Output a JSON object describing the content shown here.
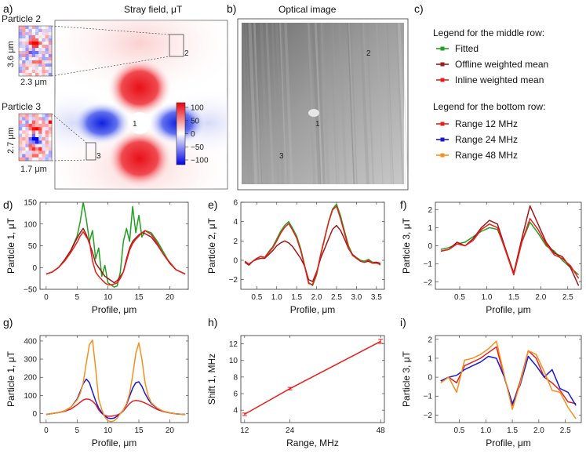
{
  "panel_labels": [
    "a)",
    "b)",
    "c)",
    "d)",
    "e)",
    "f)",
    "g)",
    "h)",
    "i)"
  ],
  "panel_a": {
    "title": "Stray field, μT",
    "colorbar_ticks": [
      "100",
      "50",
      "0",
      "−50",
      "−100"
    ],
    "point_labels": [
      "1",
      "2",
      "3"
    ],
    "inset_particle2": {
      "title": "Particle 2",
      "height": "3.6 μm",
      "width": "2.3 μm"
    },
    "inset_particle3": {
      "title": "Particle 3",
      "height": "2.7 μm",
      "width": "1.7 μm"
    }
  },
  "panel_b": {
    "title": "Optical image",
    "point_labels": [
      "1",
      "2",
      "3"
    ]
  },
  "panel_c": {
    "middle_title": "Legend for the middle row:",
    "middle_items": [
      {
        "label": "Fitted",
        "color": "#22a022"
      },
      {
        "label": "Offline weighted mean",
        "color": "#a01818"
      },
      {
        "label": "Inline weighted mean",
        "color": "#e8201c"
      }
    ],
    "bottom_title": "Legend for the bottom row:",
    "bottom_items": [
      {
        "label": "Range 12 MHz",
        "color": "#e8201c"
      },
      {
        "label": "Range 24 MHz",
        "color": "#1818d8"
      },
      {
        "label": "Range 48 MHz",
        "color": "#f5901e"
      }
    ]
  },
  "chart_data": [
    {
      "id": "d",
      "type": "line",
      "xlabel": "Profile, μm",
      "ylabel": "Particle 1, μT",
      "xlim": [
        -1,
        23
      ],
      "ylim": [
        -50,
        150
      ],
      "xticks": [
        0,
        5,
        10,
        15,
        20
      ],
      "xticklabels": [
        "0",
        "5",
        "10",
        "15",
        "20"
      ],
      "yticks": [
        -50,
        0,
        50,
        100,
        150
      ],
      "yticklabels": [
        "−50",
        "0",
        "50",
        "100",
        "150"
      ],
      "x": [
        0,
        1,
        2,
        3,
        4,
        5,
        5.5,
        6,
        6.5,
        7,
        7.5,
        8,
        8.5,
        9,
        9.5,
        10,
        10.5,
        11,
        11.5,
        12,
        12.5,
        13,
        13.5,
        14,
        14.5,
        15,
        15.5,
        16,
        17,
        18,
        19,
        20,
        21,
        22.5
      ],
      "series": [
        {
          "name": "Fitted",
          "color": "#22a022",
          "values": [
            -15,
            -10,
            0,
            18,
            40,
            72,
            105,
            150,
            110,
            60,
            85,
            20,
            45,
            -20,
            5,
            -35,
            -40,
            -45,
            -42,
            -10,
            60,
            90,
            60,
            140,
            80,
            120,
            70,
            85,
            80,
            60,
            35,
            10,
            -5,
            -15
          ]
        },
        {
          "name": "Offline weighted mean",
          "color": "#a01818",
          "values": [
            -15,
            -10,
            0,
            18,
            40,
            68,
            80,
            90,
            75,
            55,
            35,
            10,
            0,
            -10,
            -20,
            -25,
            -30,
            -35,
            -30,
            -20,
            -10,
            20,
            45,
            60,
            68,
            75,
            80,
            78,
            70,
            52,
            30,
            10,
            -5,
            -15
          ]
        },
        {
          "name": "Inline weighted mean",
          "color": "#e8201c",
          "values": [
            -15,
            -10,
            0,
            15,
            35,
            58,
            72,
            82,
            70,
            60,
            15,
            -10,
            -20,
            -28,
            -35,
            -40,
            -40,
            -38,
            -35,
            -25,
            -10,
            15,
            40,
            55,
            65,
            72,
            80,
            85,
            76,
            55,
            30,
            12,
            -5,
            -15
          ]
        }
      ]
    },
    {
      "id": "e",
      "type": "line",
      "xlabel": "Profile, μm",
      "ylabel": "Particle 2, μT",
      "xlim": [
        0.1,
        3.7
      ],
      "ylim": [
        -3,
        6
      ],
      "xticks": [
        0.5,
        1.0,
        1.5,
        2.0,
        2.5,
        3.0,
        3.5
      ],
      "xticklabels": [
        "0.5",
        "1.0",
        "1.5",
        "2.0",
        "2.5",
        "3.0",
        "3.5"
      ],
      "yticks": [
        -2,
        0,
        2,
        4,
        6
      ],
      "yticklabels": [
        "−2",
        "0",
        "2",
        "4",
        "6"
      ],
      "x": [
        0.2,
        0.3,
        0.4,
        0.5,
        0.6,
        0.7,
        0.8,
        0.9,
        1.0,
        1.1,
        1.2,
        1.3,
        1.4,
        1.5,
        1.6,
        1.7,
        1.8,
        1.9,
        2.0,
        2.1,
        2.2,
        2.3,
        2.4,
        2.5,
        2.6,
        2.7,
        2.8,
        2.9,
        3.0,
        3.1,
        3.2,
        3.3,
        3.4,
        3.5,
        3.6
      ],
      "series": [
        {
          "name": "Fitted",
          "color": "#22a022",
          "values": [
            -0.1,
            -0.4,
            -0.1,
            0.2,
            0.4,
            0.3,
            0.9,
            1.4,
            2.2,
            3.0,
            3.6,
            4.0,
            3.3,
            2.5,
            1.2,
            -0.5,
            -2.3,
            -2.6,
            -1.5,
            0.5,
            2.2,
            4.0,
            5.3,
            5.8,
            4.6,
            3.0,
            1.5,
            0.6,
            0.3,
            0.0,
            -0.1,
            0.1,
            -0.2,
            -0.2,
            -0.5
          ]
        },
        {
          "name": "Offline weighted mean",
          "color": "#a01818",
          "values": [
            -0.2,
            -0.5,
            -0.1,
            0.1,
            0.2,
            0.2,
            0.6,
            1.0,
            1.5,
            1.8,
            2.0,
            1.8,
            1.4,
            0.8,
            0.2,
            -0.6,
            -2.0,
            -2.2,
            -1.2,
            0.2,
            1.2,
            2.2,
            3.2,
            3.6,
            3.1,
            2.2,
            1.2,
            0.6,
            0.2,
            -0.1,
            -0.2,
            -0.1,
            -0.3,
            -0.2,
            -0.3
          ]
        },
        {
          "name": "Inline weighted mean",
          "color": "#e8201c",
          "values": [
            -0.1,
            -0.4,
            -0.1,
            0.2,
            0.4,
            0.3,
            0.8,
            1.3,
            2.0,
            2.8,
            3.4,
            3.8,
            3.1,
            2.3,
            1.0,
            -0.6,
            -2.4,
            -2.5,
            -1.4,
            0.6,
            2.3,
            3.9,
            5.2,
            5.6,
            4.3,
            2.8,
            1.3,
            0.5,
            0.2,
            -0.1,
            -0.2,
            0.0,
            -0.3,
            -0.3,
            -0.4
          ]
        }
      ]
    },
    {
      "id": "f",
      "type": "line",
      "xlabel": "Profile, μm",
      "ylabel": "Particle 3, μT",
      "xlim": [
        0.05,
        2.75
      ],
      "ylim": [
        -2.4,
        2.4
      ],
      "xticks": [
        0.5,
        1.0,
        1.5,
        2.0,
        2.5
      ],
      "xticklabels": [
        "0.5",
        "1.0",
        "1.5",
        "2.0",
        "2.5"
      ],
      "yticks": [
        -2,
        -1,
        0,
        1,
        2
      ],
      "yticklabels": [
        "−2",
        "−1",
        "0",
        "1",
        "2"
      ],
      "x": [
        0.15,
        0.3,
        0.45,
        0.6,
        0.75,
        0.9,
        1.05,
        1.2,
        1.35,
        1.5,
        1.65,
        1.8,
        1.95,
        2.1,
        2.25,
        2.4,
        2.55,
        2.7
      ],
      "series": [
        {
          "name": "Fitted",
          "color": "#22a022",
          "values": [
            -0.2,
            -0.1,
            0.1,
            0.2,
            0.5,
            0.8,
            1.0,
            0.9,
            -0.2,
            -1.6,
            0.2,
            1.3,
            0.7,
            0.0,
            -0.3,
            -0.8,
            -1.2,
            -1.6
          ]
        },
        {
          "name": "Offline weighted mean",
          "color": "#a01818",
          "values": [
            -0.3,
            -0.2,
            0.2,
            0.0,
            0.4,
            1.0,
            1.4,
            1.2,
            -0.2,
            -1.5,
            0.4,
            2.2,
            1.2,
            0.2,
            -0.4,
            -0.6,
            -1.2,
            -2.2
          ]
        },
        {
          "name": "Inline weighted mean",
          "color": "#e8201c",
          "values": [
            -0.3,
            -0.2,
            0.1,
            0.0,
            0.3,
            0.9,
            1.2,
            1.0,
            -0.3,
            -1.6,
            0.2,
            1.5,
            0.9,
            0.1,
            -0.5,
            -0.7,
            -1.1,
            -1.8
          ]
        }
      ]
    },
    {
      "id": "g",
      "type": "line",
      "xlabel": "Profile, μm",
      "ylabel": "Particle 1, μT",
      "xlim": [
        -1,
        23
      ],
      "ylim": [
        -50,
        430
      ],
      "xticks": [
        0,
        5,
        10,
        15,
        20
      ],
      "xticklabels": [
        "0",
        "5",
        "10",
        "15",
        "20"
      ],
      "yticks": [
        0,
        100,
        200,
        300,
        400
      ],
      "yticklabels": [
        "0",
        "100",
        "200",
        "300",
        "400"
      ],
      "x": [
        0,
        1,
        2,
        3,
        4,
        5,
        5.5,
        6,
        6.5,
        7,
        7.5,
        8,
        8.5,
        9,
        9.5,
        10,
        10.5,
        11,
        11.5,
        12,
        12.5,
        13,
        13.5,
        14,
        14.5,
        15,
        15.5,
        16,
        16.5,
        17,
        18,
        19,
        20,
        21,
        22.5
      ],
      "series": [
        {
          "name": "Range 12 MHz",
          "color": "#e8201c",
          "values": [
            -5,
            0,
            5,
            12,
            25,
            48,
            62,
            75,
            80,
            78,
            68,
            50,
            20,
            0,
            -10,
            -15,
            -15,
            -12,
            -8,
            0,
            15,
            35,
            55,
            68,
            72,
            70,
            65,
            58,
            50,
            40,
            22,
            10,
            3,
            -2,
            -5
          ]
        },
        {
          "name": "Range 24 MHz",
          "color": "#1818d8",
          "values": [
            -5,
            0,
            5,
            15,
            35,
            80,
            120,
            165,
            190,
            170,
            120,
            70,
            30,
            5,
            -15,
            -25,
            -28,
            -25,
            -15,
            0,
            20,
            50,
            95,
            140,
            170,
            175,
            150,
            110,
            80,
            55,
            28,
            12,
            4,
            -2,
            -5
          ]
        },
        {
          "name": "Range 48 MHz",
          "color": "#f5901e",
          "values": [
            -5,
            0,
            5,
            15,
            35,
            75,
            110,
            170,
            280,
            380,
            405,
            250,
            80,
            20,
            -20,
            -40,
            -45,
            -40,
            -25,
            0,
            20,
            55,
            110,
            210,
            330,
            390,
            300,
            170,
            100,
            60,
            30,
            12,
            4,
            -2,
            -5
          ]
        }
      ]
    },
    {
      "id": "h",
      "type": "line",
      "xlabel": "Range, MHz",
      "ylabel": "Shift 1, MHz",
      "xlim": [
        11,
        49
      ],
      "ylim": [
        2.5,
        13
      ],
      "xticks": [
        12,
        24,
        48
      ],
      "xticklabels": [
        "12",
        "24",
        "48"
      ],
      "yticks": [
        4,
        6,
        8,
        10,
        12
      ],
      "yticklabels": [
        "4",
        "6",
        "8",
        "10",
        "12"
      ],
      "x": [
        12,
        24,
        48
      ],
      "series": [
        {
          "name": "Shift",
          "color": "#e8201c",
          "values": [
            3.5,
            6.6,
            12.3
          ],
          "error": [
            0.15,
            0.15,
            0.25
          ]
        }
      ]
    },
    {
      "id": "i",
      "type": "line",
      "xlabel": "Profile, μm",
      "ylabel": "Particle 3, μT",
      "xlim": [
        0.05,
        2.8
      ],
      "ylim": [
        -2.4,
        2.2
      ],
      "xticks": [
        0.5,
        1.0,
        1.5,
        2.0,
        2.5
      ],
      "xticklabels": [
        "0.5",
        "1.0",
        "1.5",
        "2.0",
        "2.5"
      ],
      "yticks": [
        -2,
        -1,
        0,
        1,
        2
      ],
      "yticklabels": [
        "−2",
        "−1",
        "0",
        "1",
        "2"
      ],
      "x": [
        0.15,
        0.3,
        0.45,
        0.6,
        0.75,
        0.9,
        1.05,
        1.2,
        1.35,
        1.5,
        1.65,
        1.8,
        1.95,
        2.1,
        2.25,
        2.4,
        2.55,
        2.7
      ],
      "series": [
        {
          "name": "Range 12 MHz",
          "color": "#e8201c",
          "values": [
            -0.2,
            0.0,
            -0.3,
            0.6,
            0.8,
            1.0,
            1.3,
            1.6,
            0.0,
            -1.5,
            -0.2,
            1.4,
            1.0,
            0.0,
            -0.3,
            -0.7,
            -1.3,
            -1.4
          ]
        },
        {
          "name": "Range 24 MHz",
          "color": "#1818d8",
          "values": [
            -0.2,
            0.0,
            0.1,
            0.4,
            0.6,
            0.8,
            1.1,
            1.0,
            0.0,
            -1.4,
            -0.4,
            1.1,
            0.6,
            0.0,
            0.4,
            -0.6,
            -0.8,
            -1.5
          ]
        },
        {
          "name": "Range 48 MHz",
          "color": "#f5901e",
          "values": [
            -0.3,
            0.0,
            -0.8,
            0.9,
            1.0,
            1.2,
            1.5,
            1.9,
            0.1,
            -1.7,
            -0.3,
            1.4,
            1.2,
            0.3,
            -0.7,
            -0.8,
            -1.6,
            -2.2
          ]
        }
      ]
    }
  ]
}
